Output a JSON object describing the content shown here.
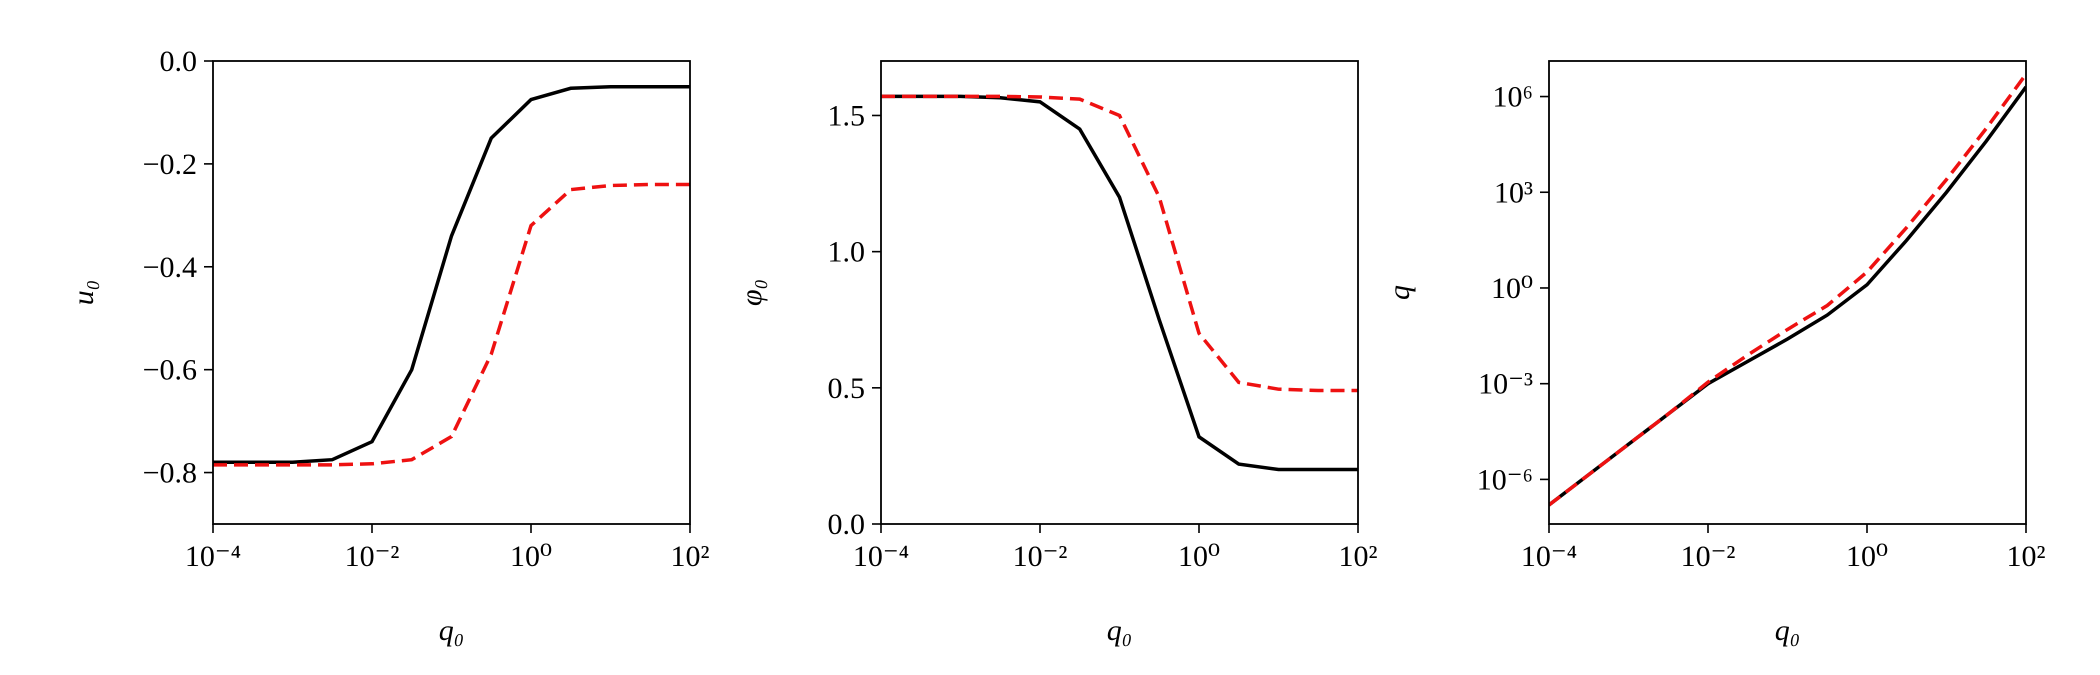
{
  "chart_data": [
    {
      "type": "line",
      "xlabel": "q₀",
      "ylabel": "u₀",
      "xlog": true,
      "ylog": false,
      "xlim": [
        0.0001,
        100
      ],
      "ylim": [
        -0.9,
        0
      ],
      "xticks": [
        {
          "value": 0.0001,
          "label": "10⁻⁴"
        },
        {
          "value": 0.01,
          "label": "10⁻²"
        },
        {
          "value": 1,
          "label": "10⁰"
        },
        {
          "value": 100,
          "label": "10²"
        }
      ],
      "yticks": [
        {
          "value": 0,
          "label": "0.0"
        },
        {
          "value": -0.2,
          "label": "−0.2"
        },
        {
          "value": -0.4,
          "label": "−0.4"
        },
        {
          "value": -0.6,
          "label": "−0.6"
        },
        {
          "value": -0.8,
          "label": "−0.8"
        }
      ],
      "x": [
        0.0001,
        0.000316,
        0.001,
        0.00316,
        0.01,
        0.0316,
        0.1,
        0.316,
        1,
        3.16,
        10,
        31.6,
        100
      ],
      "series": [
        {
          "color": "#000000",
          "style": "solid",
          "values": [
            -0.78,
            -0.78,
            -0.78,
            -0.775,
            -0.74,
            -0.6,
            -0.34,
            -0.15,
            -0.075,
            -0.053,
            -0.05,
            -0.05,
            -0.05
          ]
        },
        {
          "color": "#ee1111",
          "style": "dashed",
          "values": [
            -0.785,
            -0.785,
            -0.785,
            -0.785,
            -0.783,
            -0.775,
            -0.73,
            -0.57,
            -0.32,
            -0.25,
            -0.242,
            -0.24,
            -0.24
          ]
        }
      ]
    },
    {
      "type": "line",
      "xlabel": "q₀",
      "ylabel": "φ₀",
      "xlog": true,
      "ylog": false,
      "xlim": [
        0.0001,
        100
      ],
      "ylim": [
        0,
        1.7
      ],
      "xticks": [
        {
          "value": 0.0001,
          "label": "10⁻⁴"
        },
        {
          "value": 0.01,
          "label": "10⁻²"
        },
        {
          "value": 1,
          "label": "10⁰"
        },
        {
          "value": 100,
          "label": "10²"
        }
      ],
      "yticks": [
        {
          "value": 0,
          "label": "0.0"
        },
        0.5,
        {
          "value": 1,
          "label": "1.0"
        },
        1.5
      ],
      "x": [
        0.0001,
        0.000316,
        0.001,
        0.00316,
        0.01,
        0.0316,
        0.1,
        0.316,
        1,
        3.16,
        10,
        31.6,
        100
      ],
      "series": [
        {
          "color": "#000000",
          "style": "solid",
          "values": [
            1.57,
            1.57,
            1.57,
            1.565,
            1.55,
            1.45,
            1.2,
            0.75,
            0.32,
            0.22,
            0.2,
            0.2,
            0.2
          ]
        },
        {
          "color": "#ee1111",
          "style": "dashed",
          "values": [
            1.57,
            1.57,
            1.57,
            1.57,
            1.568,
            1.56,
            1.5,
            1.2,
            0.7,
            0.52,
            0.495,
            0.49,
            0.49
          ]
        }
      ]
    },
    {
      "type": "line",
      "xlabel": "q₀",
      "ylabel": "q",
      "xlog": true,
      "ylog": true,
      "xlim": [
        0.0001,
        100
      ],
      "ylim": [
        4e-08,
        13000000
      ],
      "xticks": [
        {
          "value": 0.0001,
          "label": "10⁻⁴"
        },
        {
          "value": 0.01,
          "label": "10⁻²"
        },
        {
          "value": 1,
          "label": "10⁰"
        },
        {
          "value": 100,
          "label": "10²"
        }
      ],
      "yticks": [
        {
          "value": 1e-06,
          "label": "10⁻⁶"
        },
        {
          "value": 0.001,
          "label": "10⁻³"
        },
        {
          "value": 1,
          "label": "10⁰"
        },
        {
          "value": 1000,
          "label": "10³"
        },
        {
          "value": 1000000,
          "label": "10⁶"
        }
      ],
      "x": [
        0.0001,
        0.000316,
        0.001,
        0.00316,
        0.01,
        0.0316,
        0.1,
        0.316,
        1,
        3.16,
        10,
        31.6,
        100
      ],
      "series": [
        {
          "color": "#000000",
          "style": "solid",
          "values": [
            1.58e-07,
            1.41e-06,
            1.26e-05,
            0.000112,
            0.001,
            0.005,
            0.0251,
            0.141,
            1.26,
            31.6,
            1000,
            39800,
            2000000
          ]
        },
        {
          "color": "#ee1111",
          "style": "dashed",
          "values": [
            1.58e-07,
            1.41e-06,
            1.26e-05,
            0.000112,
            0.00112,
            0.00794,
            0.0501,
            0.282,
            3.16,
            79.4,
            2510,
            100000,
            5010000
          ]
        }
      ]
    }
  ]
}
